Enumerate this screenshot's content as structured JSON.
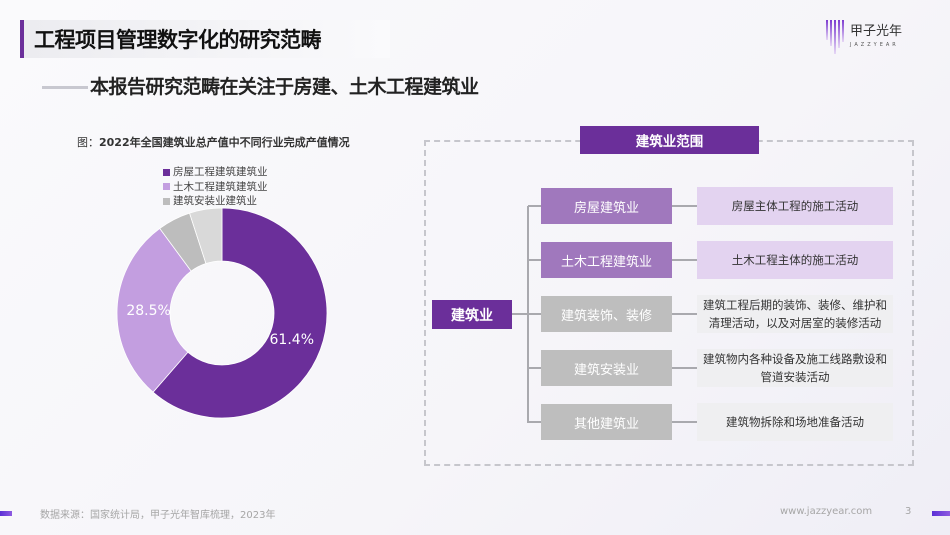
{
  "header": {
    "title": "工程项目管理数字化的研究范畴",
    "subtitle": "本报告研究范畴在关注于房建、土木工程建筑业",
    "logo": {
      "name": "甲子光年",
      "sub": "JAZZYEAR"
    }
  },
  "chart_data": {
    "type": "pie",
    "title_prefix": "图：",
    "title": "2022年全国建筑业总产值中不同行业完成产值情况",
    "categories": [
      "房屋工程建筑建筑业",
      "土木工程建筑建筑业",
      "建筑安装业建筑业",
      ""
    ],
    "values": [
      61.4,
      28.5,
      5.1,
      5.0
    ],
    "labels": [
      "61.4%",
      "28.5%",
      "",
      ""
    ],
    "colors": [
      "#6b2f9a",
      "#c39ee0",
      "#bdbdbd",
      "#d9d9d9"
    ],
    "legend_position": "top",
    "donut": true
  },
  "scope": {
    "header": "建筑业范围",
    "root": "建筑业",
    "items": [
      {
        "name": "房屋建筑业",
        "desc": "房屋主体工程的施工活动"
      },
      {
        "name": "土木工程建筑业",
        "desc": "土木工程主体的施工活动"
      },
      {
        "name": "建筑装饰、装修",
        "desc": "建筑工程后期的装饰、装修、维护和清理活动，以及对居室的装修活动"
      },
      {
        "name": "建筑安装业",
        "desc": "建筑物内各种设备及施工线路敷设和管道安装活动"
      },
      {
        "name": "其他建筑业",
        "desc": "建筑物拆除和场地准备活动"
      }
    ]
  },
  "footer": {
    "source": "数据来源：国家统计局，甲子光年智库梳理，2023年",
    "url": "www.jazzyear.com",
    "page": "3"
  }
}
